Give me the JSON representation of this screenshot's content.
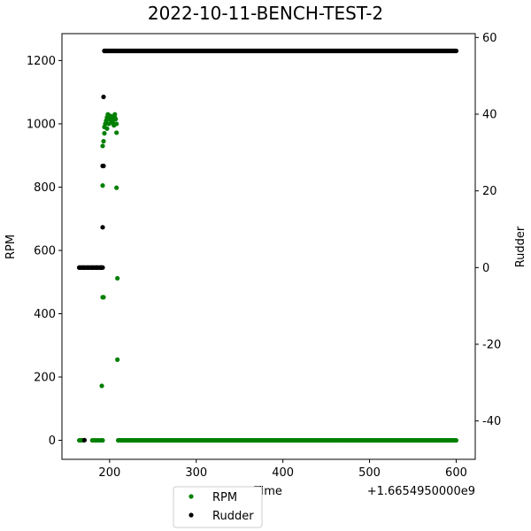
{
  "chart_data": {
    "type": "scatter",
    "title": "2022-10-11-BENCH-TEST-2",
    "xlabel": "Time",
    "x_offset_label": "+1.6654950000e9",
    "ylabel": "RPM",
    "y2label": "Rudder",
    "xlim": [
      145,
      622
    ],
    "ylim": [
      -60,
      1285
    ],
    "y2lim": [
      -50,
      61
    ],
    "xticks": [
      200,
      300,
      400,
      500,
      600
    ],
    "yticks": [
      0,
      200,
      400,
      600,
      800,
      1000,
      1200
    ],
    "y2ticks": [
      -40,
      -20,
      0,
      20,
      40,
      60
    ],
    "legend": {
      "placement": "bottom-center-outside"
    },
    "grid": false,
    "series": [
      {
        "name": "RPM",
        "axis": "left",
        "color": "#008000",
        "clusters": [
          [
            165,
            0
          ],
          [
            166,
            0
          ],
          [
            167,
            0
          ],
          [
            168,
            0
          ],
          [
            169,
            0
          ],
          [
            170,
            0
          ],
          [
            180,
            0
          ],
          [
            182,
            0
          ],
          [
            184,
            0
          ],
          [
            186,
            0
          ],
          [
            188,
            0
          ],
          [
            190,
            0
          ],
          [
            191,
            0
          ],
          [
            192,
            0
          ],
          [
            191,
            172
          ],
          [
            192,
            452
          ],
          [
            193,
            452
          ],
          [
            192,
            805
          ],
          [
            192,
            930
          ],
          [
            193,
            945
          ],
          [
            194,
            970
          ],
          [
            194,
            990
          ],
          [
            195,
            1000
          ],
          [
            196,
            1010
          ],
          [
            197,
            1020
          ],
          [
            198,
            1030
          ],
          [
            199,
            1000
          ],
          [
            200,
            1015
          ],
          [
            201,
            1025
          ],
          [
            202,
            1005
          ],
          [
            203,
            1020
          ],
          [
            204,
            1010
          ],
          [
            205,
            995
          ],
          [
            206,
            1030
          ],
          [
            207,
            1015
          ],
          [
            208,
            1000
          ],
          [
            206,
            1020
          ],
          [
            204,
            1000
          ],
          [
            199,
            1025
          ],
          [
            197,
            985
          ],
          [
            208,
            972
          ],
          [
            208,
            798
          ],
          [
            209,
            512
          ],
          [
            209,
            255
          ],
          [
            210,
            0
          ]
        ],
        "dense_segments": [
          {
            "x_start": 210,
            "x_end": 600,
            "y": 0
          }
        ]
      },
      {
        "name": "Rudder",
        "axis": "right",
        "color": "#000000",
        "clusters": [
          [
            165,
            0
          ],
          [
            170,
            0
          ],
          [
            171,
            -45
          ],
          [
            175,
            0
          ],
          [
            180,
            0
          ],
          [
            185,
            0
          ],
          [
            190,
            0
          ],
          [
            191,
            0
          ],
          [
            192,
            10.5
          ],
          [
            192,
            26.5
          ],
          [
            193,
            26.5
          ],
          [
            193,
            44.5
          ],
          [
            194,
            56.5
          ]
        ],
        "dense_segments": [
          {
            "x_start": 165,
            "x_end": 192,
            "y": 0
          },
          {
            "x_start": 194,
            "x_end": 600,
            "y": 56.5
          }
        ]
      }
    ]
  }
}
